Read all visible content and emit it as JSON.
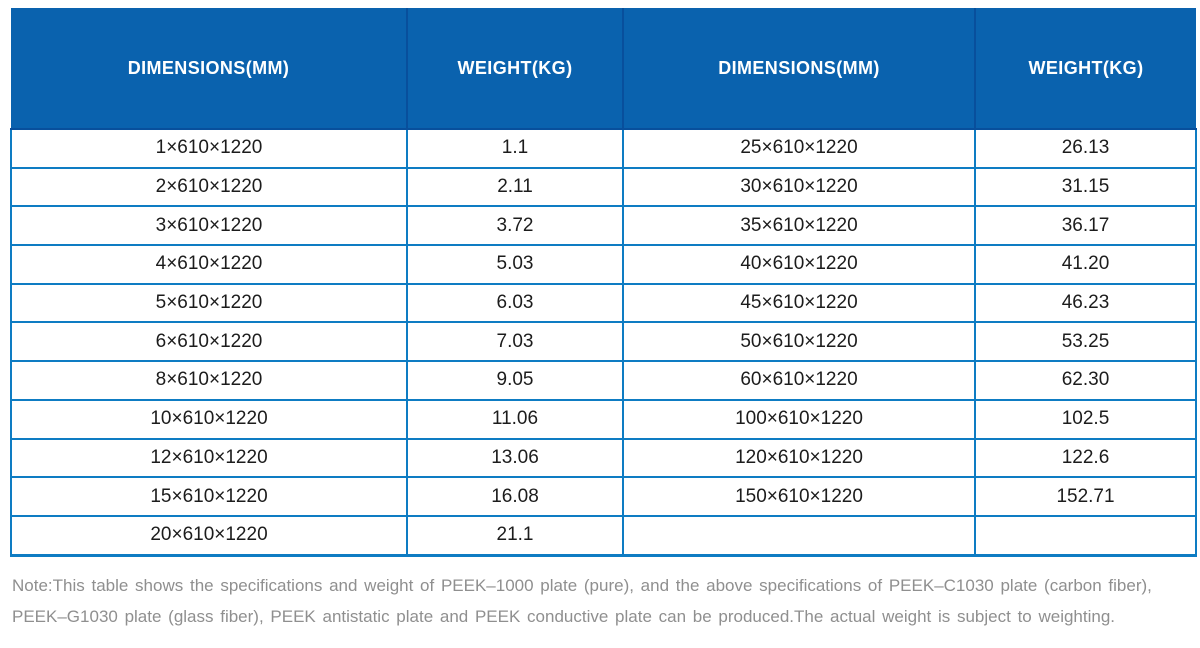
{
  "colors": {
    "header_bg": "#0A62AE",
    "header_divider": "#084F9C",
    "body_border": "#0E7CC3",
    "body_text": "#1C1C1C",
    "note_text": "#8F8F8F"
  },
  "table": {
    "headers": [
      "DIMENSIONS(MM)",
      "WEIGHT(KG)",
      "DIMENSIONS(MM)",
      "WEIGHT(KG)"
    ],
    "rows": [
      [
        "1×610×1220",
        "1.1",
        "25×610×1220",
        "26.13"
      ],
      [
        "2×610×1220",
        "2.11",
        "30×610×1220",
        "31.15"
      ],
      [
        "3×610×1220",
        "3.72",
        "35×610×1220",
        "36.17"
      ],
      [
        "4×610×1220",
        "5.03",
        "40×610×1220",
        "41.20"
      ],
      [
        "5×610×1220",
        "6.03",
        "45×610×1220",
        "46.23"
      ],
      [
        "6×610×1220",
        "7.03",
        "50×610×1220",
        "53.25"
      ],
      [
        "8×610×1220",
        "9.05",
        "60×610×1220",
        "62.30"
      ],
      [
        "10×610×1220",
        "11.06",
        "100×610×1220",
        "102.5"
      ],
      [
        "12×610×1220",
        "13.06",
        "120×610×1220",
        "122.6"
      ],
      [
        "15×610×1220",
        "16.08",
        "150×610×1220",
        "152.71"
      ],
      [
        "20×610×1220",
        "21.1",
        "",
        ""
      ]
    ]
  },
  "note": {
    "line1": "Note:This table shows the specifications and weight of PEEK–1000 plate (pure), and the above specifications of PEEK–C1030 plate (carbon fiber),",
    "line2": "PEEK–G1030 plate (glass fiber), PEEK antistatic plate and PEEK conductive plate can be produced.The actual weight is subject to weighting."
  }
}
